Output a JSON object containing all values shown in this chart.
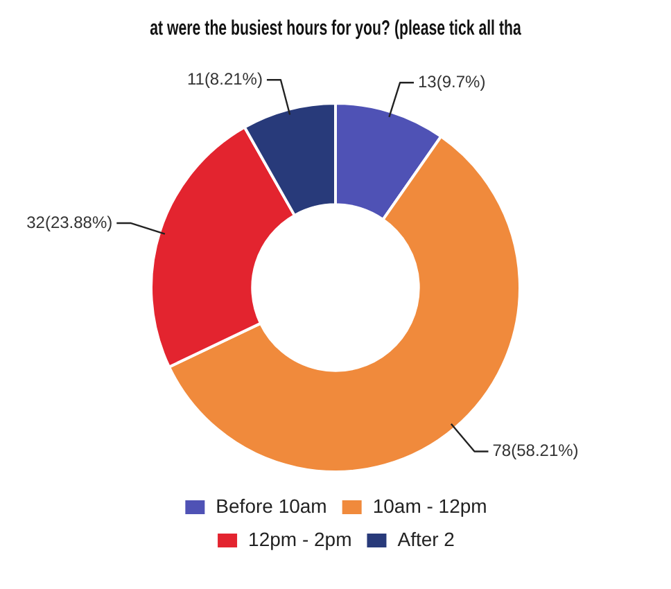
{
  "chart_data": {
    "type": "donut",
    "title": "at were the busiest hours for you? (please tick all tha",
    "categories": [
      "Before 10am",
      "10am - 12pm",
      "12pm - 2pm",
      "After 2"
    ],
    "values": [
      13,
      78,
      32,
      11
    ],
    "colors": [
      "#4f52b5",
      "#f08a3c",
      "#e3242f",
      "#283a7a"
    ],
    "value_labels": [
      "13(9.7%)",
      "78(58.21%)",
      "32(23.88%)",
      "11(8.21%)"
    ],
    "legend": "bottom"
  }
}
